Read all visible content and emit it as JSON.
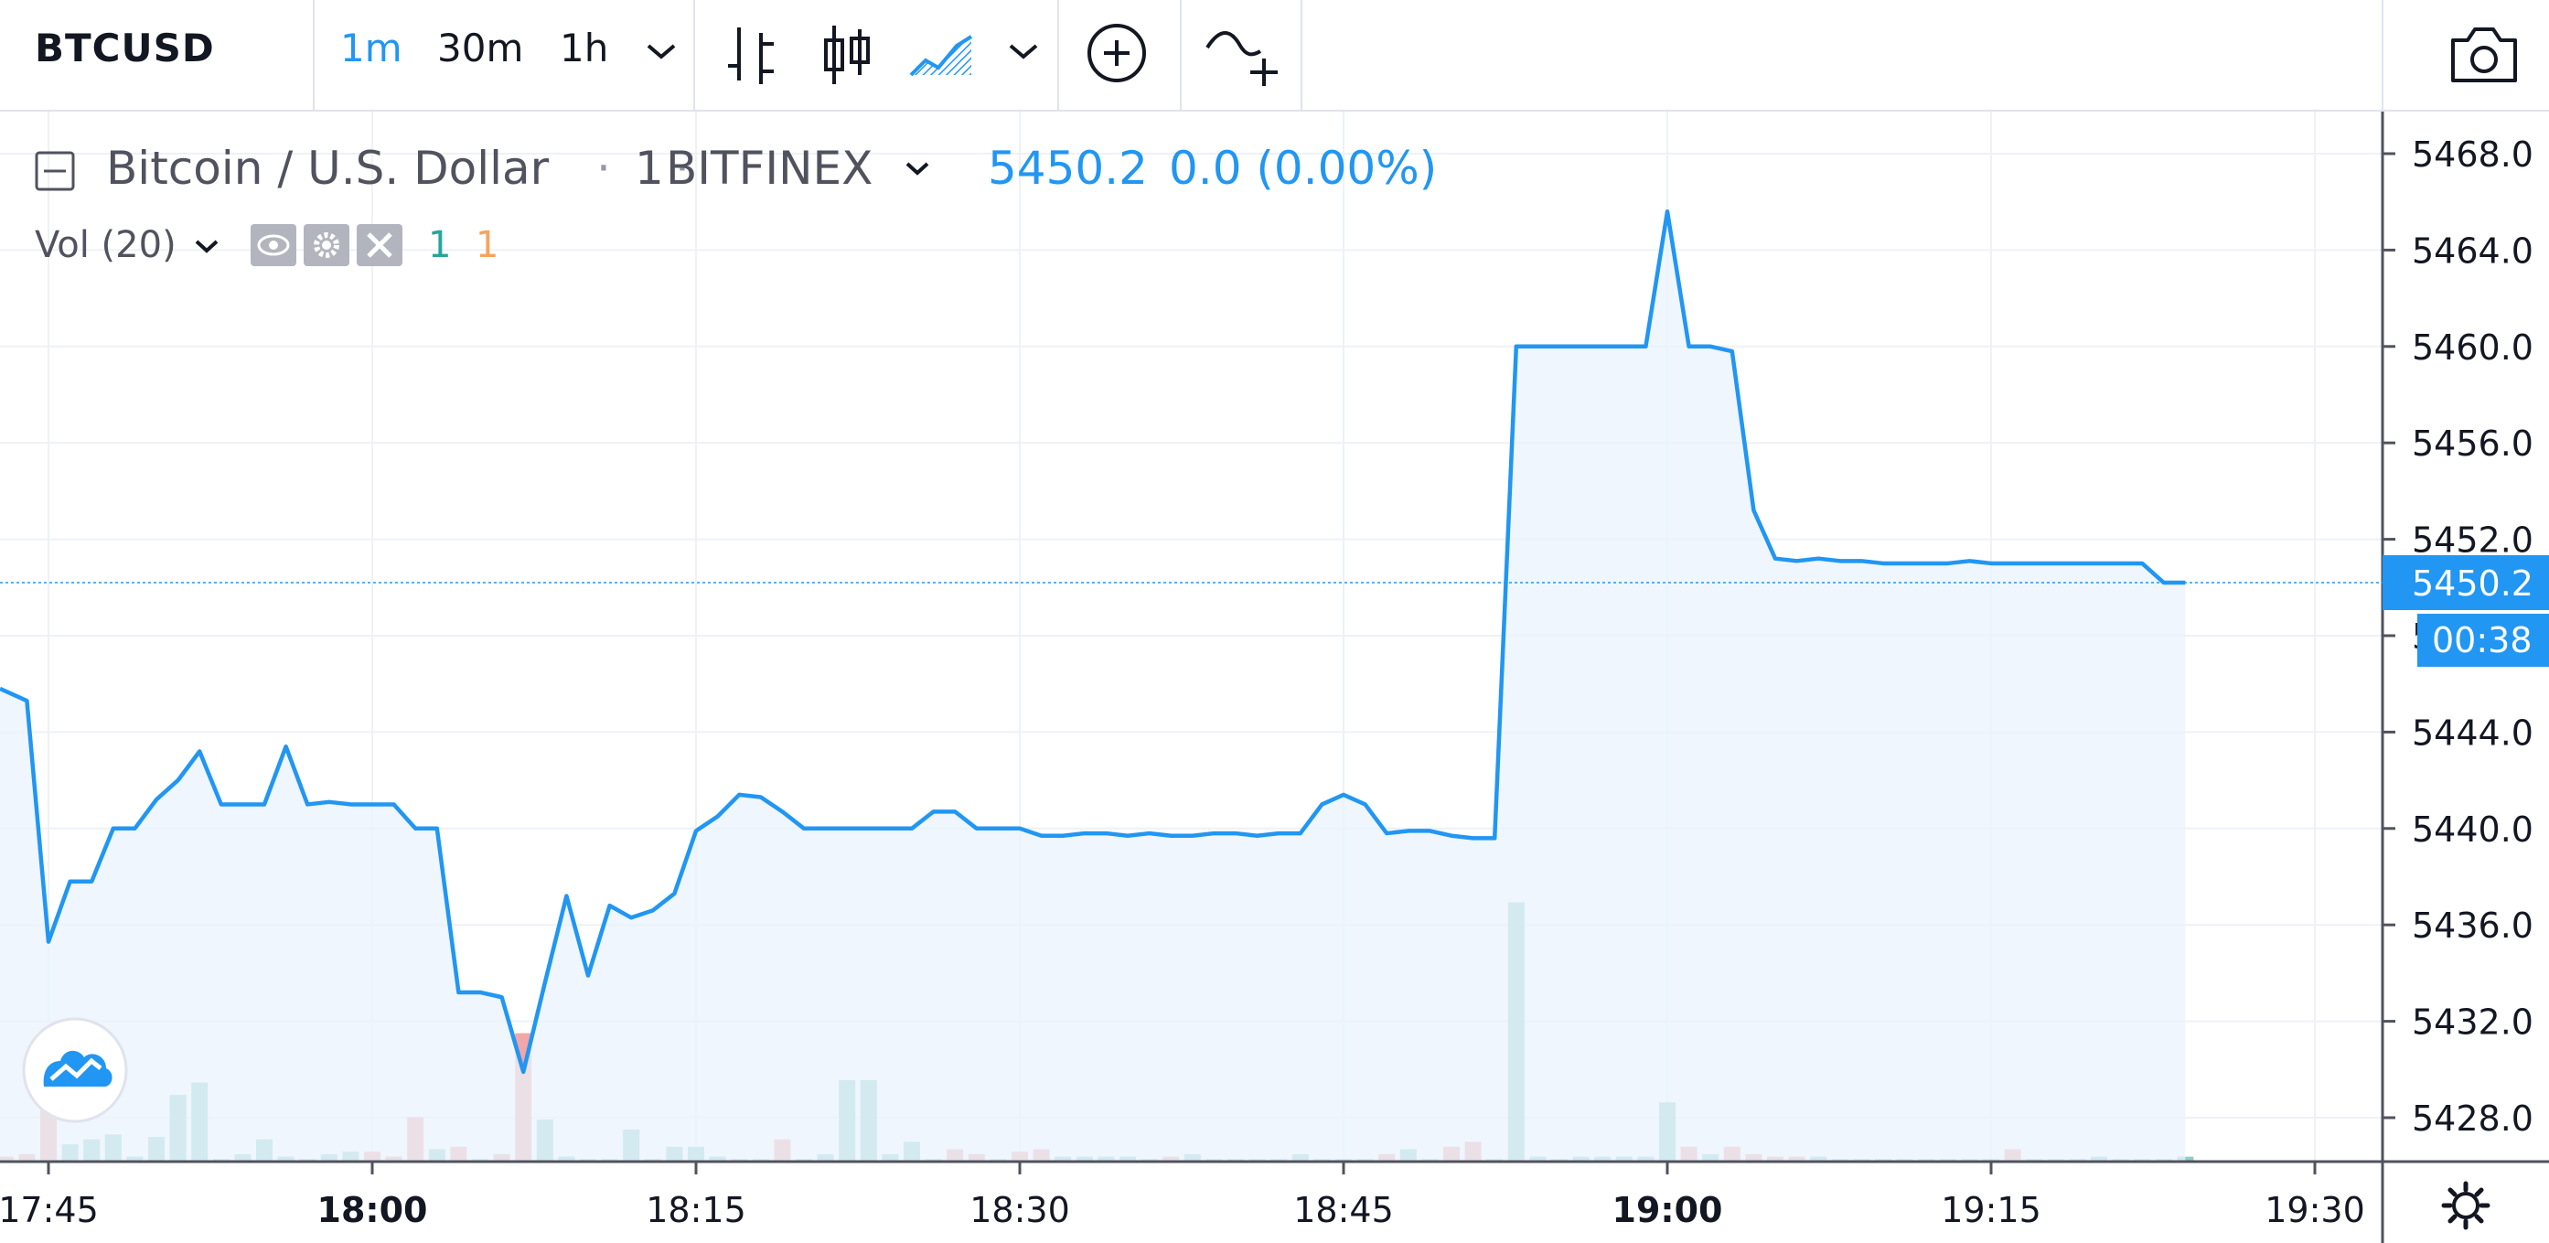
{
  "toolbar": {
    "symbol": "BTCUSD",
    "intervals": [
      {
        "label": "1m",
        "active": true
      },
      {
        "label": "30m",
        "active": false
      },
      {
        "label": "1h",
        "active": false
      }
    ],
    "icons": [
      "chevron-down-icon",
      "bar-style-icon",
      "candle-style-icon",
      "area-style-icon",
      "chevron-down-icon",
      "plus-circle-icon",
      "indicator-add-icon",
      "camera-icon"
    ]
  },
  "legend": {
    "title": "Bitcoin / U.S. Dollar",
    "interval": "1",
    "exchange": "BITFINEX",
    "price": "5450.2",
    "change": "0.0 (0.00%)",
    "vol_label": "Vol (20)",
    "vol_up": "1",
    "vol_down": "1"
  },
  "price_scale": {
    "current_price": "5450.2",
    "countdown": "00:38"
  },
  "colors": {
    "line": "#2196f3",
    "area_fill": "#eaf3fc",
    "vol_up": "#8fcfcb",
    "vol_down": "#f1a7a7",
    "grid": "#eef1f6"
  },
  "chart_data": {
    "type": "area",
    "ylim": [
      5426,
      5470
    ],
    "yticks": [
      5428,
      5432,
      5436,
      5440,
      5444,
      5448,
      5452,
      5456,
      5460,
      5464,
      5468
    ],
    "xticks": [
      {
        "label": "17:45",
        "bold": false
      },
      {
        "label": "18:00",
        "bold": true
      },
      {
        "label": "18:15",
        "bold": false
      },
      {
        "label": "18:30",
        "bold": false
      },
      {
        "label": "18:45",
        "bold": false
      },
      {
        "label": "19:00",
        "bold": true
      },
      {
        "label": "19:15",
        "bold": false
      },
      {
        "label": "19:30",
        "bold": false
      }
    ],
    "series": [
      {
        "x": [
          "17:43",
          "17:44",
          "17:45",
          "17:46",
          "17:47",
          "17:48",
          "17:49",
          "17:50",
          "17:51",
          "17:52",
          "17:53",
          "17:54",
          "17:55",
          "17:56",
          "17:57",
          "17:58",
          "17:59",
          "18:00",
          "18:01",
          "18:02",
          "18:03",
          "18:04",
          "18:05",
          "18:06",
          "18:07",
          "18:08",
          "18:09",
          "18:10",
          "18:11",
          "18:12",
          "18:13",
          "18:14",
          "18:15",
          "18:16",
          "18:17",
          "18:18",
          "18:19",
          "18:20",
          "18:21",
          "18:22",
          "18:23",
          "18:24",
          "18:25",
          "18:26",
          "18:27",
          "18:28",
          "18:29",
          "18:30",
          "18:31",
          "18:32",
          "18:33",
          "18:34",
          "18:35",
          "18:36",
          "18:37",
          "18:38",
          "18:39",
          "18:40",
          "18:41",
          "18:42",
          "18:43",
          "18:44",
          "18:45",
          "18:46",
          "18:47",
          "18:48",
          "18:49",
          "18:50",
          "18:51",
          "18:52",
          "18:53",
          "18:54",
          "18:55",
          "18:56",
          "18:57",
          "18:58",
          "18:59",
          "19:00",
          "19:01",
          "19:02",
          "19:03",
          "19:04",
          "19:05",
          "19:06",
          "19:07",
          "19:08",
          "19:09",
          "19:10",
          "19:11",
          "19:12",
          "19:13",
          "19:14",
          "19:15",
          "19:16",
          "19:17",
          "19:18",
          "19:19",
          "19:20",
          "19:21",
          "19:22",
          "19:23",
          "19:24"
        ],
        "values": [
          5445.8,
          5445.3,
          5435.3,
          5437.8,
          5437.8,
          5440.0,
          5440.0,
          5441.2,
          5442.0,
          5443.2,
          5441.0,
          5441.0,
          5441.0,
          5443.4,
          5441.0,
          5441.1,
          5441.0,
          5441.0,
          5441.0,
          5440.0,
          5440.0,
          5433.2,
          5433.2,
          5433.0,
          5429.9,
          5433.6,
          5437.2,
          5433.9,
          5436.8,
          5436.3,
          5436.6,
          5437.3,
          5439.9,
          5440.5,
          5441.4,
          5441.3,
          5440.7,
          5440.0,
          5440.0,
          5440.0,
          5440.0,
          5440.0,
          5440.0,
          5440.7,
          5440.7,
          5440.0,
          5440.0,
          5440.0,
          5439.7,
          5439.7,
          5439.8,
          5439.8,
          5439.7,
          5439.8,
          5439.7,
          5439.7,
          5439.8,
          5439.8,
          5439.7,
          5439.8,
          5439.8,
          5441.0,
          5441.4,
          5441.0,
          5439.8,
          5439.9,
          5439.9,
          5439.7,
          5439.6,
          5439.6,
          5460.0,
          5460.0,
          5460.0,
          5460.0,
          5460.0,
          5460.0,
          5460.0,
          5465.6,
          5460.0,
          5460.0,
          5459.8,
          5453.2,
          5451.2,
          5451.1,
          5451.2,
          5451.1,
          5451.1,
          5451.0,
          5451.0,
          5451.0,
          5451.0,
          5451.1,
          5451.0,
          5451.0,
          5451.0,
          5451.0,
          5451.0,
          5451.0,
          5451.0,
          5451.0,
          5450.2,
          5450.2
        ]
      }
    ],
    "volume": [
      {
        "v": 2,
        "dir": "down"
      },
      {
        "v": 3,
        "dir": "down"
      },
      {
        "v": 38,
        "dir": "down"
      },
      {
        "v": 7,
        "dir": "up"
      },
      {
        "v": 9,
        "dir": "up"
      },
      {
        "v": 11,
        "dir": "up"
      },
      {
        "v": 2,
        "dir": "up"
      },
      {
        "v": 10,
        "dir": "up"
      },
      {
        "v": 27,
        "dir": "up"
      },
      {
        "v": 32,
        "dir": "up"
      },
      {
        "v": 1,
        "dir": "up"
      },
      {
        "v": 3,
        "dir": "up"
      },
      {
        "v": 9,
        "dir": "up"
      },
      {
        "v": 2,
        "dir": "up"
      },
      {
        "v": 1,
        "dir": "up"
      },
      {
        "v": 3,
        "dir": "up"
      },
      {
        "v": 4,
        "dir": "up"
      },
      {
        "v": 4,
        "dir": "down"
      },
      {
        "v": 2,
        "dir": "down"
      },
      {
        "v": 18,
        "dir": "down"
      },
      {
        "v": 5,
        "dir": "up"
      },
      {
        "v": 6,
        "dir": "down"
      },
      {
        "v": 1,
        "dir": "up"
      },
      {
        "v": 3,
        "dir": "down"
      },
      {
        "v": 52,
        "dir": "down"
      },
      {
        "v": 17,
        "dir": "up"
      },
      {
        "v": 2,
        "dir": "up"
      },
      {
        "v": 1,
        "dir": "up"
      },
      {
        "v": 1,
        "dir": "up"
      },
      {
        "v": 13,
        "dir": "up"
      },
      {
        "v": 1,
        "dir": "up"
      },
      {
        "v": 6,
        "dir": "up"
      },
      {
        "v": 6,
        "dir": "up"
      },
      {
        "v": 2,
        "dir": "up"
      },
      {
        "v": 1,
        "dir": "up"
      },
      {
        "v": 1,
        "dir": "up"
      },
      {
        "v": 9,
        "dir": "down"
      },
      {
        "v": 1,
        "dir": "up"
      },
      {
        "v": 3,
        "dir": "up"
      },
      {
        "v": 33,
        "dir": "up"
      },
      {
        "v": 33,
        "dir": "up"
      },
      {
        "v": 3,
        "dir": "up"
      },
      {
        "v": 8,
        "dir": "up"
      },
      {
        "v": 1,
        "dir": "up"
      },
      {
        "v": 5,
        "dir": "down"
      },
      {
        "v": 3,
        "dir": "down"
      },
      {
        "v": 1,
        "dir": "up"
      },
      {
        "v": 4,
        "dir": "down"
      },
      {
        "v": 5,
        "dir": "down"
      },
      {
        "v": 2,
        "dir": "up"
      },
      {
        "v": 2,
        "dir": "up"
      },
      {
        "v": 2,
        "dir": "up"
      },
      {
        "v": 2,
        "dir": "up"
      },
      {
        "v": 1,
        "dir": "up"
      },
      {
        "v": 2,
        "dir": "down"
      },
      {
        "v": 3,
        "dir": "up"
      },
      {
        "v": 1,
        "dir": "up"
      },
      {
        "v": 1,
        "dir": "up"
      },
      {
        "v": 1,
        "dir": "up"
      },
      {
        "v": 1,
        "dir": "up"
      },
      {
        "v": 3,
        "dir": "up"
      },
      {
        "v": 1,
        "dir": "up"
      },
      {
        "v": 1,
        "dir": "up"
      },
      {
        "v": 1,
        "dir": "up"
      },
      {
        "v": 3,
        "dir": "down"
      },
      {
        "v": 5,
        "dir": "up"
      },
      {
        "v": 1,
        "dir": "up"
      },
      {
        "v": 6,
        "dir": "down"
      },
      {
        "v": 8,
        "dir": "down"
      },
      {
        "v": 1,
        "dir": "up"
      },
      {
        "v": 105,
        "dir": "up"
      },
      {
        "v": 2,
        "dir": "up"
      },
      {
        "v": 1,
        "dir": "up"
      },
      {
        "v": 2,
        "dir": "up"
      },
      {
        "v": 2,
        "dir": "up"
      },
      {
        "v": 2,
        "dir": "up"
      },
      {
        "v": 2,
        "dir": "up"
      },
      {
        "v": 24,
        "dir": "up"
      },
      {
        "v": 6,
        "dir": "down"
      },
      {
        "v": 3,
        "dir": "up"
      },
      {
        "v": 6,
        "dir": "down"
      },
      {
        "v": 3,
        "dir": "down"
      },
      {
        "v": 2,
        "dir": "down"
      },
      {
        "v": 2,
        "dir": "down"
      },
      {
        "v": 2,
        "dir": "up"
      },
      {
        "v": 1,
        "dir": "up"
      },
      {
        "v": 1,
        "dir": "up"
      },
      {
        "v": 1,
        "dir": "up"
      },
      {
        "v": 1,
        "dir": "up"
      },
      {
        "v": 1,
        "dir": "up"
      },
      {
        "v": 1,
        "dir": "up"
      },
      {
        "v": 1,
        "dir": "up"
      },
      {
        "v": 1,
        "dir": "up"
      },
      {
        "v": 5,
        "dir": "down"
      },
      {
        "v": 1,
        "dir": "up"
      },
      {
        "v": 1,
        "dir": "up"
      },
      {
        "v": 1,
        "dir": "up"
      },
      {
        "v": 2,
        "dir": "up"
      },
      {
        "v": 1,
        "dir": "up"
      },
      {
        "v": 1,
        "dir": "up"
      },
      {
        "v": 1,
        "dir": "up"
      },
      {
        "v": 2,
        "dir": "up"
      }
    ]
  }
}
